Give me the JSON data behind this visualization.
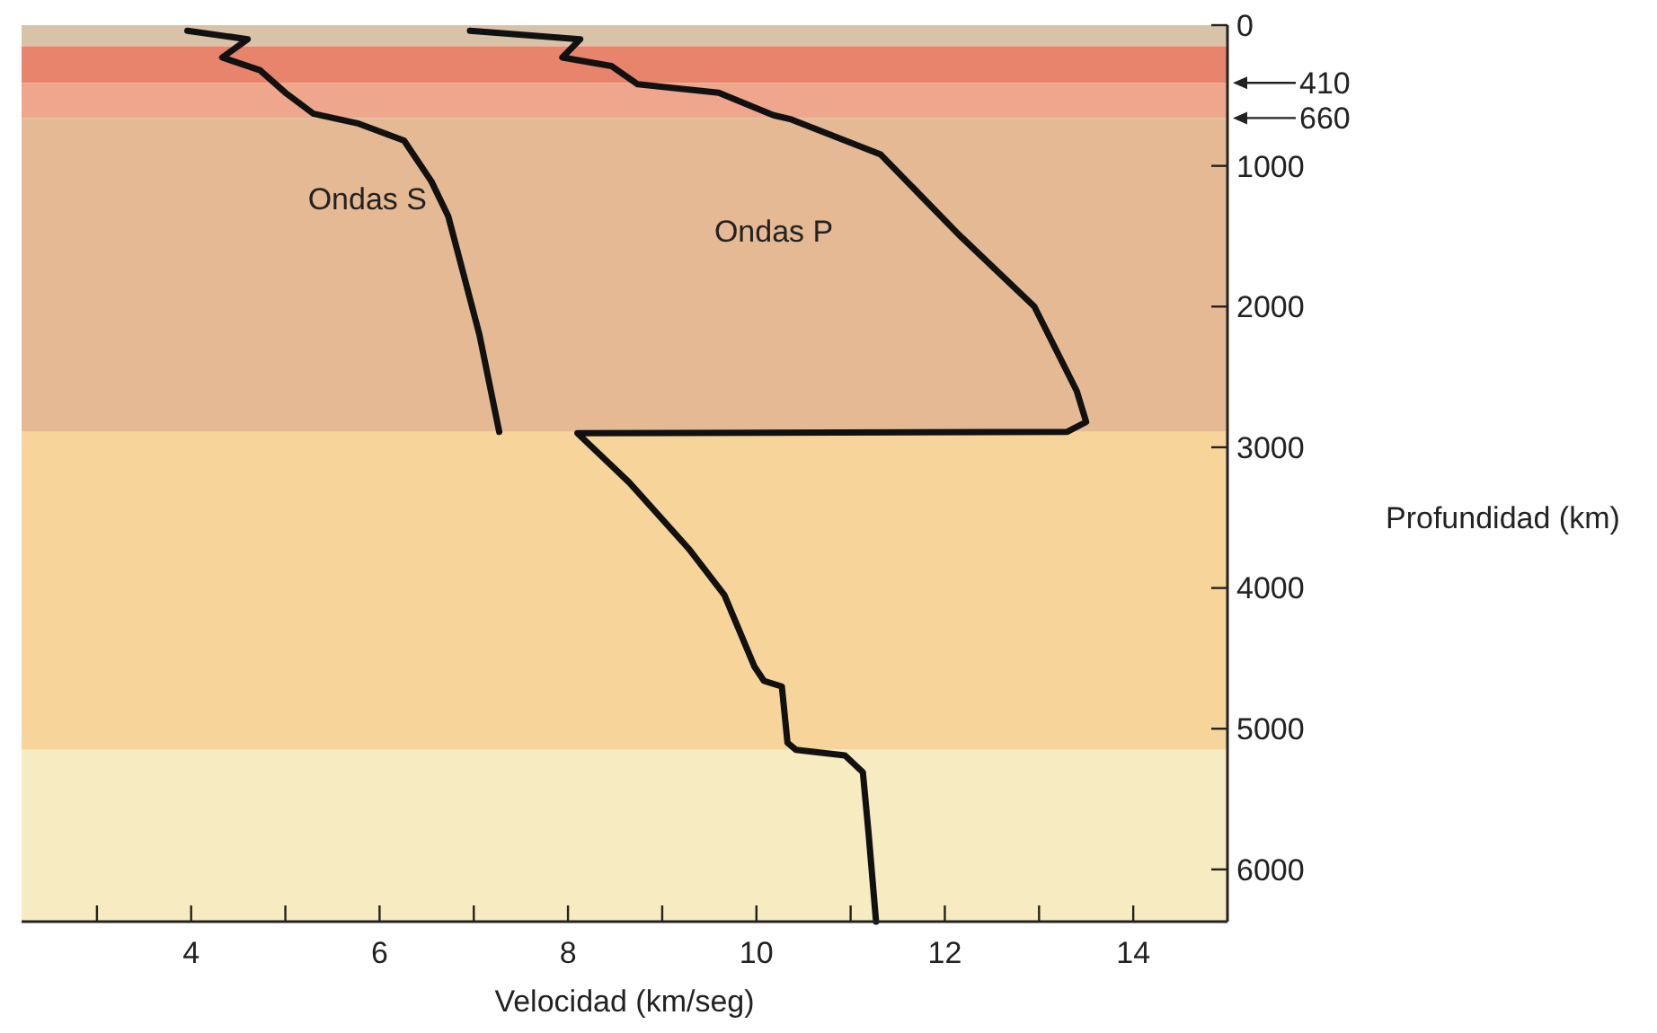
{
  "chart_data": {
    "type": "line",
    "xlabel": "Velocidad (km/seg)",
    "ylabel": "Profundidad (km)",
    "xlim": [
      2.2,
      15
    ],
    "xticks": [
      {
        "value": 3,
        "label": null
      },
      4,
      {
        "value": 5,
        "label": null
      },
      6,
      {
        "value": 7,
        "label": null
      },
      8,
      {
        "value": 9,
        "label": null
      },
      10,
      {
        "value": 11,
        "label": null
      },
      12,
      {
        "value": 13,
        "label": null
      },
      14
    ],
    "ylim": [
      6371,
      0
    ],
    "yticks": [
      0,
      1000,
      2000,
      3000,
      4000,
      5000,
      6000
    ],
    "grid": false,
    "legend": false,
    "marker": "none",
    "line_style": "solid",
    "series": [
      {
        "name": "Ondas S",
        "color": "#111111",
        "x": [
          3.96,
          4.6,
          4.33,
          4.73,
          5.0,
          5.3,
          5.78,
          6.26,
          6.55,
          6.73,
          7.06,
          7.27
        ],
        "values": [
          40,
          100,
          230,
          320,
          480,
          630,
          700,
          820,
          1110,
          1360,
          2200,
          2890
        ]
      },
      {
        "name": "Ondas P",
        "color": "#111111",
        "x": [
          6.96,
          8.13,
          7.94,
          8.46,
          8.74,
          9.6,
          10.18,
          10.37,
          11.32,
          12.15,
          12.95,
          13.4,
          13.5,
          13.3,
          8.1,
          8.65,
          9.28,
          9.66,
          9.98,
          10.08,
          10.27,
          10.33,
          10.42,
          10.94,
          11.13,
          11.19,
          11.27
        ],
        "values": [
          40,
          100,
          230,
          290,
          420,
          480,
          640,
          670,
          920,
          1490,
          2000,
          2600,
          2820,
          2890,
          2900,
          3250,
          3720,
          4050,
          4560,
          4660,
          4700,
          5100,
          5150,
          5190,
          5310,
          5740,
          6371
        ]
      }
    ],
    "bands": [
      {
        "axis": "y",
        "from": 0,
        "to": 150,
        "color": "#d8c2a8"
      },
      {
        "axis": "y",
        "from": 150,
        "to": 410,
        "color": "#e8846c"
      },
      {
        "axis": "y",
        "from": 410,
        "to": 660,
        "color": "#eea68c"
      },
      {
        "axis": "y",
        "from": 660,
        "to": 2890,
        "color": "#e4b994"
      },
      {
        "axis": "y",
        "from": 2890,
        "to": 5150,
        "color": "#f6d49a"
      },
      {
        "axis": "y",
        "from": 5150,
        "to": 6371,
        "color": "#f6ebc1"
      }
    ],
    "ref_lines": [
      {
        "axis": "y",
        "value": 410,
        "label": "410"
      },
      {
        "axis": "y",
        "value": 660,
        "label": "660"
      }
    ]
  }
}
